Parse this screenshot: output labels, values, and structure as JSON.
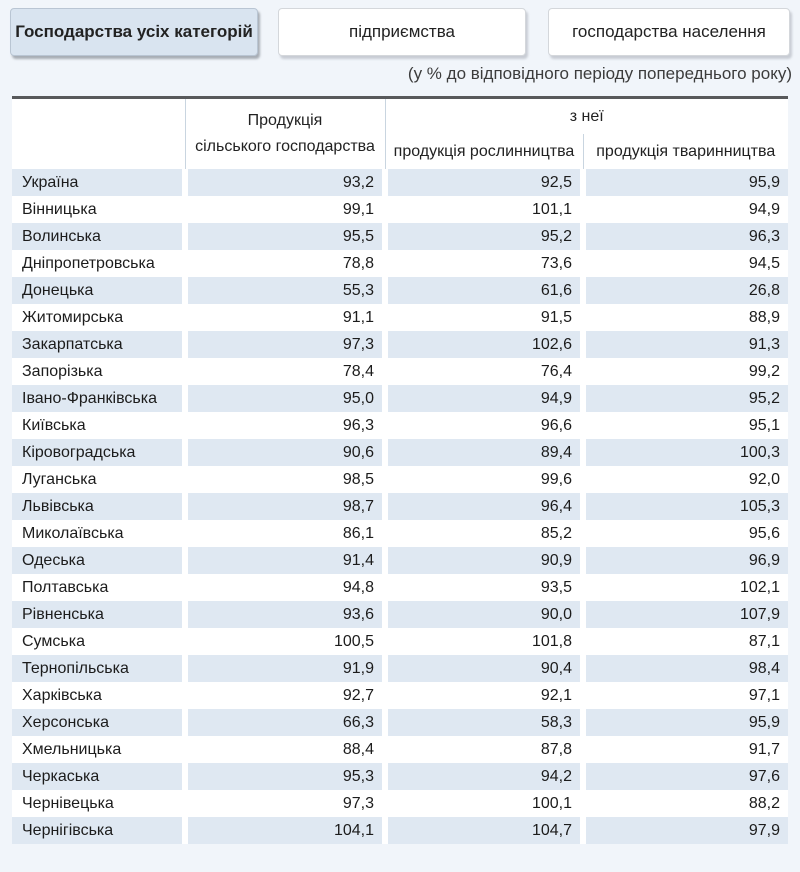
{
  "tabs": [
    {
      "label": "Господарства усіх категорій",
      "active": true
    },
    {
      "label": "підприємства",
      "active": false
    },
    {
      "label": "господарства населення",
      "active": false
    }
  ],
  "subtitle": "(у % до відповідного періоду попереднього року)",
  "colors": {
    "page_background": "#f1f5fa",
    "active_tab_background": "#d9e4f0",
    "striped_row_background": "#dfe8f2",
    "table_top_border": "#58595b"
  },
  "table": {
    "headers": {
      "blank": "",
      "col_total_line1": "Продукція",
      "col_total_line2": "сільського господарства",
      "group": "з неї",
      "col_crop": "продукція рослинництва",
      "col_livestock": "продукція тваринництва"
    },
    "rows": [
      {
        "region": "Україна",
        "total": "93,2",
        "crop": "92,5",
        "livestock": "95,9"
      },
      {
        "region": "Вінницька",
        "total": "99,1",
        "crop": "101,1",
        "livestock": "94,9"
      },
      {
        "region": "Волинська",
        "total": "95,5",
        "crop": "95,2",
        "livestock": "96,3"
      },
      {
        "region": "Дніпропетровська",
        "total": "78,8",
        "crop": "73,6",
        "livestock": "94,5"
      },
      {
        "region": "Донецька",
        "total": "55,3",
        "crop": "61,6",
        "livestock": "26,8"
      },
      {
        "region": "Житомирська",
        "total": "91,1",
        "crop": "91,5",
        "livestock": "88,9"
      },
      {
        "region": "Закарпатська",
        "total": "97,3",
        "crop": "102,6",
        "livestock": "91,3"
      },
      {
        "region": "Запорізька",
        "total": "78,4",
        "crop": "76,4",
        "livestock": "99,2"
      },
      {
        "region": "Івано-Франківська",
        "total": "95,0",
        "crop": "94,9",
        "livestock": "95,2"
      },
      {
        "region": "Київська",
        "total": "96,3",
        "crop": "96,6",
        "livestock": "95,1"
      },
      {
        "region": "Кіровоградська",
        "total": "90,6",
        "crop": "89,4",
        "livestock": "100,3"
      },
      {
        "region": "Луганська",
        "total": "98,5",
        "crop": "99,6",
        "livestock": "92,0"
      },
      {
        "region": "Львівська",
        "total": "98,7",
        "crop": "96,4",
        "livestock": "105,3"
      },
      {
        "region": "Миколаївська",
        "total": "86,1",
        "crop": "85,2",
        "livestock": "95,6"
      },
      {
        "region": "Одеська",
        "total": "91,4",
        "crop": "90,9",
        "livestock": "96,9"
      },
      {
        "region": "Полтавська",
        "total": "94,8",
        "crop": "93,5",
        "livestock": "102,1"
      },
      {
        "region": "Рівненська",
        "total": "93,6",
        "crop": "90,0",
        "livestock": "107,9"
      },
      {
        "region": "Сумська",
        "total": "100,5",
        "crop": "101,8",
        "livestock": "87,1"
      },
      {
        "region": "Тернопільська",
        "total": "91,9",
        "crop": "90,4",
        "livestock": "98,4"
      },
      {
        "region": "Харківська",
        "total": "92,7",
        "crop": "92,1",
        "livestock": "97,1"
      },
      {
        "region": "Херсонська",
        "total": "66,3",
        "crop": "58,3",
        "livestock": "95,9"
      },
      {
        "region": "Хмельницька",
        "total": "88,4",
        "crop": "87,8",
        "livestock": "91,7"
      },
      {
        "region": "Черкаська",
        "total": "95,3",
        "crop": "94,2",
        "livestock": "97,6"
      },
      {
        "region": "Чернівецька",
        "total": "97,3",
        "crop": "100,1",
        "livestock": "88,2"
      },
      {
        "region": "Чернігівська",
        "total": "104,1",
        "crop": "104,7",
        "livestock": "97,9"
      }
    ]
  }
}
